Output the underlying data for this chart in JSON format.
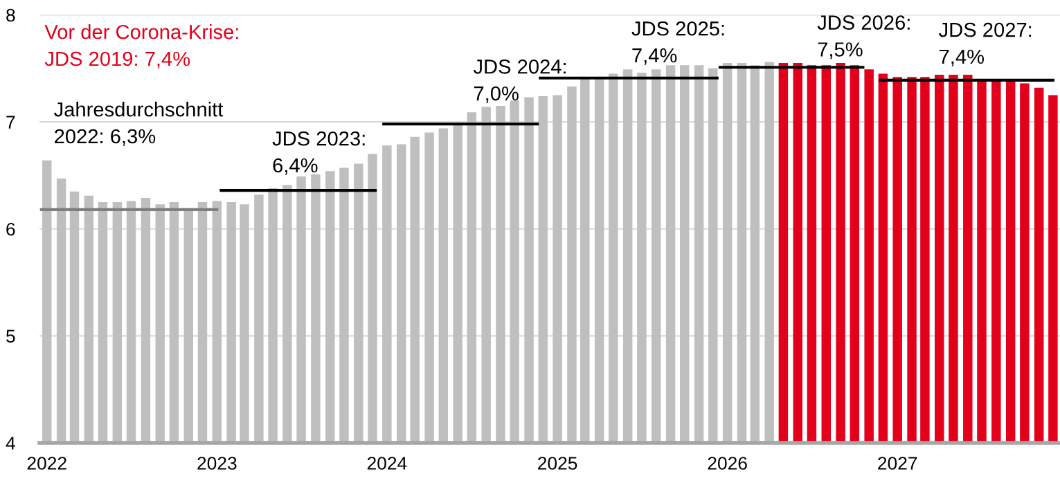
{
  "chart_data": {
    "type": "bar",
    "x": [
      "2022-01",
      "2022-02",
      "2022-03",
      "2022-04",
      "2022-05",
      "2022-06",
      "2022-07",
      "2022-08",
      "2022-09",
      "2022-10",
      "2022-11",
      "2022-12",
      "2023-01",
      "2023-02",
      "2023-03",
      "2023-04",
      "2023-05",
      "2023-06",
      "2023-07",
      "2023-08",
      "2023-09",
      "2023-10",
      "2023-11",
      "2023-12",
      "2024-01",
      "2024-02",
      "2024-03",
      "2024-04",
      "2024-05",
      "2024-06",
      "2024-07",
      "2024-08",
      "2024-09",
      "2024-10",
      "2024-11",
      "2024-12",
      "2025-01",
      "2025-02",
      "2025-03",
      "2025-04",
      "2025-05",
      "2025-06",
      "2025-07",
      "2025-08",
      "2025-09",
      "2025-10",
      "2025-11",
      "2025-12",
      "2026-01",
      "2026-02",
      "2026-03",
      "2026-04",
      "2026-05",
      "2026-06",
      "2026-07",
      "2026-08",
      "2026-09",
      "2026-10",
      "2026-11",
      "2026-12",
      "2027-01",
      "2027-02",
      "2027-03",
      "2027-04",
      "2027-05",
      "2027-06",
      "2027-07",
      "2027-08",
      "2027-09",
      "2027-10",
      "2027-11",
      "2027-12"
    ],
    "series": [
      {
        "values": [
          6.64,
          6.47,
          6.35,
          6.31,
          6.25,
          6.25,
          6.26,
          6.29,
          6.23,
          6.25,
          6.19,
          6.25,
          6.26,
          6.25,
          6.23,
          6.32,
          6.38,
          6.41,
          6.49,
          6.51,
          6.54,
          6.57,
          6.61,
          6.7,
          6.78,
          6.79,
          6.86,
          6.9,
          6.94,
          6.97,
          7.09,
          7.14,
          7.15,
          7.2,
          7.23,
          7.24,
          7.25,
          7.33,
          7.4,
          7.4,
          7.45,
          7.49,
          7.46,
          7.49,
          7.53,
          7.53,
          7.53,
          7.5,
          7.55,
          7.55,
          7.53,
          7.56,
          7.55,
          7.55,
          7.53,
          7.53,
          7.55,
          7.53,
          7.49,
          7.45,
          7.42,
          7.42,
          7.42,
          7.44,
          7.44,
          7.44,
          7.39,
          7.39,
          7.39,
          7.36,
          7.32,
          7.25
        ],
        "colors": [
          "#bfbfbf",
          "#bfbfbf",
          "#bfbfbf",
          "#bfbfbf",
          "#bfbfbf",
          "#bfbfbf",
          "#bfbfbf",
          "#bfbfbf",
          "#bfbfbf",
          "#bfbfbf",
          "#bfbfbf",
          "#bfbfbf",
          "#bfbfbf",
          "#bfbfbf",
          "#bfbfbf",
          "#bfbfbf",
          "#bfbfbf",
          "#bfbfbf",
          "#bfbfbf",
          "#bfbfbf",
          "#bfbfbf",
          "#bfbfbf",
          "#bfbfbf",
          "#bfbfbf",
          "#bfbfbf",
          "#bfbfbf",
          "#bfbfbf",
          "#bfbfbf",
          "#bfbfbf",
          "#bfbfbf",
          "#bfbfbf",
          "#bfbfbf",
          "#bfbfbf",
          "#bfbfbf",
          "#bfbfbf",
          "#bfbfbf",
          "#bfbfbf",
          "#bfbfbf",
          "#bfbfbf",
          "#bfbfbf",
          "#bfbfbf",
          "#bfbfbf",
          "#bfbfbf",
          "#bfbfbf",
          "#bfbfbf",
          "#bfbfbf",
          "#bfbfbf",
          "#bfbfbf",
          "#bfbfbf",
          "#bfbfbf",
          "#bfbfbf",
          "#bfbfbf",
          "#e2001a",
          "#e2001a",
          "#e2001a",
          "#e2001a",
          "#e2001a",
          "#e2001a",
          "#e2001a",
          "#e2001a",
          "#e2001a",
          "#e2001a",
          "#e2001a",
          "#e2001a",
          "#e2001a",
          "#e2001a",
          "#e2001a",
          "#e2001a",
          "#e2001a",
          "#e2001a",
          "#e2001a",
          "#e2001a"
        ]
      },
      {
        "type": "line",
        "color": "#7f7f7f",
        "x": [
          "2021-12-17",
          "2023-01-04"
        ],
        "values": [
          6.18,
          6.18
        ]
      },
      {
        "type": "line",
        "color": "#000000",
        "x": [
          "2023-01-07",
          "2023-12-10"
        ],
        "values": [
          6.36,
          6.36
        ]
      },
      {
        "type": "line",
        "color": "#000000",
        "x": [
          "2023-12-22",
          "2024-11-22"
        ],
        "values": [
          6.98,
          6.98
        ]
      },
      {
        "type": "line",
        "color": "#000000",
        "x": [
          "2024-11-22",
          "2025-12-13"
        ],
        "values": [
          7.41,
          7.41
        ]
      },
      {
        "type": "line",
        "color": "#000000",
        "x": [
          "2025-12-13",
          "2026-10-22"
        ],
        "values": [
          7.51,
          7.51
        ]
      },
      {
        "type": "line",
        "color": "#000000",
        "x": [
          "2026-11-22",
          "2027-12-04"
        ],
        "values": [
          7.39,
          7.39
        ]
      }
    ],
    "xlim": [
      "2021-12-16",
      "2027-12-16"
    ],
    "xticks": [
      {
        "value": "2022-01",
        "label": "2022"
      },
      {
        "value": "2023-01",
        "label": "2023"
      },
      {
        "value": "2024-01",
        "label": "2024"
      },
      {
        "value": "2025-01",
        "label": "2025"
      },
      {
        "value": "2026-01",
        "label": "2026"
      },
      {
        "value": "2027-01",
        "label": "2027"
      }
    ],
    "ylim": [
      4,
      8
    ],
    "yticks": [
      4,
      5,
      6,
      7,
      8
    ],
    "grid": "y",
    "annotations": [
      "Vor der Corona-Krise:\nJDS 2019: 7,4%",
      "Jahresdurchschnitt\n2022: 6,3%",
      "JDS 2023:\n6,4%",
      "JDS 2024:\n7,0%",
      "JDS 2025:\n7,4%",
      "JDS 2026:\n7,5%",
      "JDS 2027:\n7,4%"
    ]
  }
}
